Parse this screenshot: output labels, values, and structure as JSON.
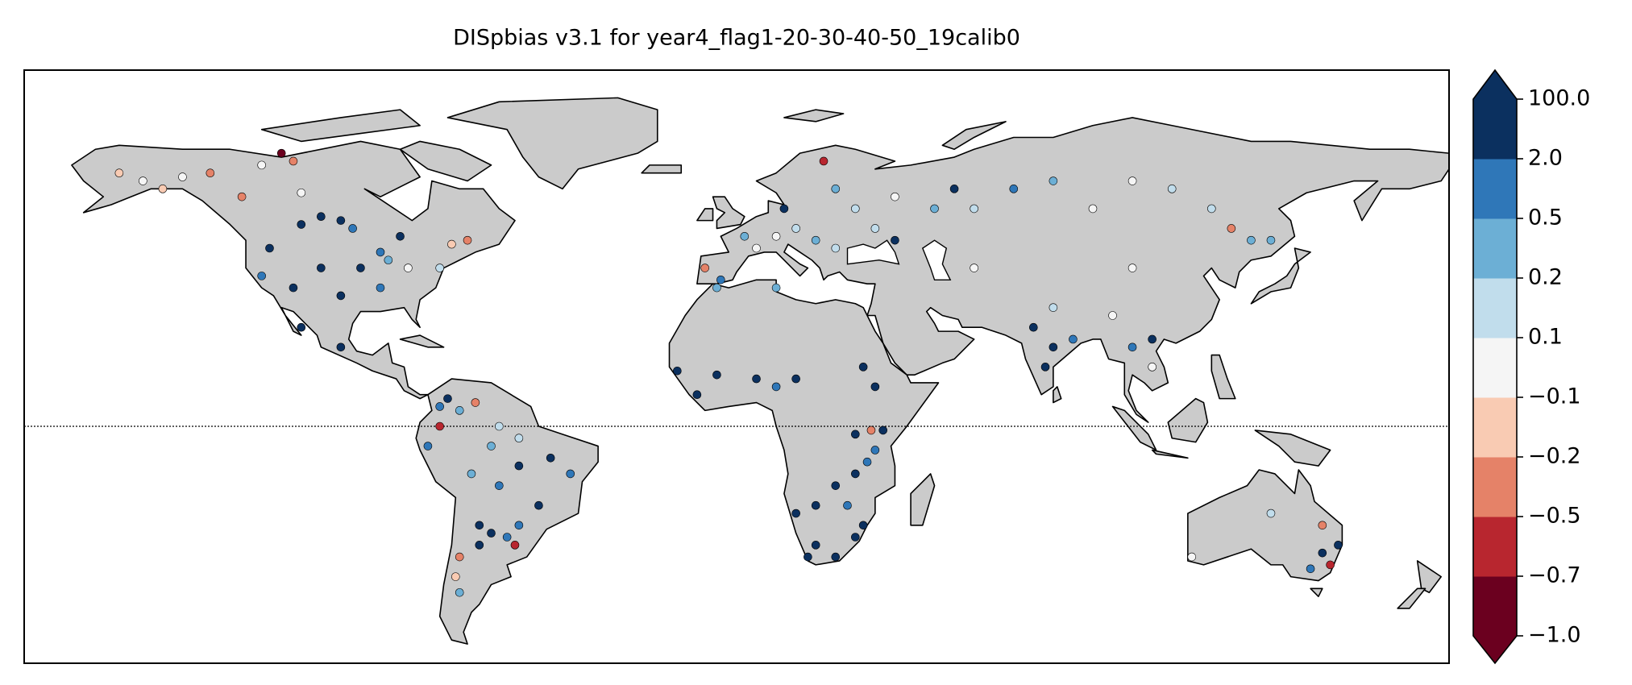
{
  "chart_data": {
    "type": "map",
    "title": "DISpbias v3.1 for year4_flag1-20-30-40-50_19calib0",
    "colorbar": {
      "ticks": [
        {
          "value": -1.0,
          "label": "−1.0"
        },
        {
          "value": -0.7,
          "label": "−0.7"
        },
        {
          "value": -0.5,
          "label": "−0.5"
        },
        {
          "value": -0.2,
          "label": "−0.2"
        },
        {
          "value": -0.1,
          "label": "−0.1"
        },
        0.1,
        0.2,
        0.5,
        {
          "value": 2.0,
          "label": "2.0"
        },
        {
          "value": 100.0,
          "label": "100.0"
        }
      ],
      "colors": [
        "#6b001f",
        "#b8262f",
        "#e58268",
        "#f9cbb3",
        "#f5f5f5",
        "#c1ddec",
        "#6cafd5",
        "#2f77b8",
        "#0b305f"
      ]
    },
    "stations": {
      "lon": [
        -156,
        -150,
        -140,
        -145,
        -133,
        -120,
        -115,
        -112,
        -125,
        -110,
        -105,
        -100,
        -110,
        -97,
        -90,
        -88,
        -83,
        -95,
        -105,
        -118,
        -120,
        -112,
        -100,
        -90,
        -110,
        -100,
        -72,
        -75,
        -68,
        -85,
        -75,
        -73,
        -75,
        -70,
        -66,
        -60,
        -55,
        -62,
        -47,
        -42,
        -55,
        -60,
        -50,
        -55,
        -58,
        -62,
        -65,
        -56,
        -65,
        -70,
        -71,
        -70,
        -78,
        -67,
        -8,
        -4,
        5,
        10,
        15,
        20,
        25,
        2,
        12,
        25,
        30,
        40,
        35,
        40,
        -5,
        10,
        22,
        -15,
        -5,
        5,
        10,
        15,
        32,
        35,
        30,
        37,
        34,
        33,
        30,
        25,
        20,
        15,
        28,
        32,
        30,
        20,
        25,
        18,
        35,
        -10,
        50,
        60,
        55,
        70,
        80,
        90,
        100,
        110,
        120,
        130,
        125,
        135,
        75,
        80,
        78,
        85,
        95,
        100,
        105,
        105,
        80,
        60,
        100,
        115,
        150,
        148,
        152,
        148,
        145,
        135
      ],
      "lat": [
        64,
        62,
        63,
        60,
        64,
        66,
        69,
        67,
        58,
        59,
        53,
        52,
        51,
        50,
        44,
        42,
        40,
        40,
        40,
        45,
        38,
        35,
        33,
        35,
        25,
        20,
        46,
        40,
        47,
        48,
        5,
        7,
        0,
        4,
        6,
        0,
        -3,
        -5,
        -8,
        -12,
        -10,
        -15,
        -20,
        -25,
        -28,
        -27,
        -25,
        -30,
        -30,
        -33,
        -38,
        -42,
        -5,
        -12,
        40,
        37,
        45,
        48,
        50,
        47,
        45,
        48,
        55,
        60,
        55,
        58,
        50,
        47,
        35,
        35,
        67,
        14,
        13,
        12,
        10,
        12,
        15,
        10,
        -2,
        -1,
        -1,
        -9,
        -12,
        -15,
        -20,
        -22,
        -20,
        -25,
        -28,
        -30,
        -33,
        -33,
        -6,
        8,
        55,
        55,
        60,
        60,
        62,
        55,
        62,
        60,
        55,
        47,
        50,
        47,
        25,
        20,
        15,
        22,
        28,
        20,
        22,
        15,
        30,
        40,
        40,
        -33,
        -35,
        -25,
        -30,
        -32,
        -36,
        -22
      ],
      "values": [
        -0.15,
        0,
        0,
        -0.15,
        -0.3,
        0,
        -0.8,
        -0.3,
        -0.3,
        0,
        3,
        3,
        3,
        1,
        1,
        0.3,
        0,
        3,
        3,
        3,
        1,
        3,
        3,
        1,
        3,
        3,
        -0.15,
        0.15,
        -0.3,
        3,
        1,
        3,
        -0.6,
        0.3,
        -0.3,
        0.15,
        0.15,
        0.3,
        3,
        1,
        3,
        1,
        3,
        1,
        1,
        3,
        3,
        -0.6,
        3,
        -0.3,
        -0.15,
        0.3,
        1,
        0.3,
        -0.3,
        1,
        0,
        0,
        0.15,
        0.3,
        0.15,
        0.3,
        3,
        0.3,
        0.15,
        0,
        0.15,
        3,
        0.3,
        0.3,
        -0.6,
        3,
        3,
        3,
        1,
        3,
        3,
        3,
        3,
        3,
        -0.3,
        1,
        3,
        3,
        3,
        3,
        1,
        3,
        3,
        3,
        3,
        3,
        1,
        3,
        0.3,
        0.15,
        3,
        1,
        0.3,
        0,
        0,
        0.15,
        0.15,
        0.3,
        -0.3,
        0.3,
        3,
        3,
        3,
        1,
        0,
        1,
        3,
        0,
        0.15,
        0,
        0,
        0,
        -0.6,
        -0.3,
        3,
        3,
        1,
        0.15
      ]
    }
  }
}
